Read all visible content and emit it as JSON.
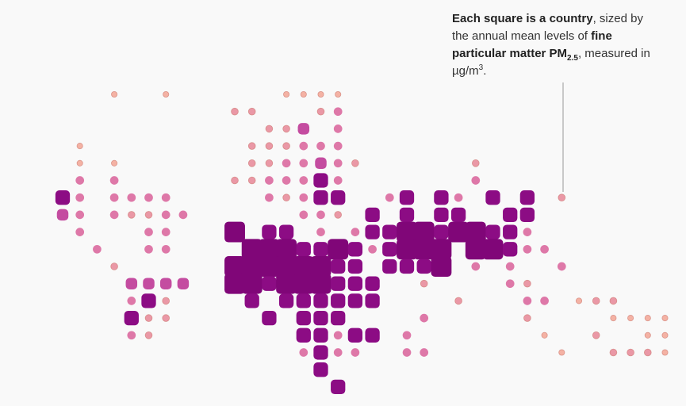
{
  "chart_data": {
    "type": "tilemap",
    "annotation": [
      "Each square is a country",
      ", sized by the annual mean levels of ",
      "fine particular matter PM",
      "2.5",
      ", measured in µg/m",
      "3",
      "."
    ],
    "rows": [
      [
        null,
        null,
        null,
        6,
        null,
        null,
        6,
        null,
        null,
        null,
        null,
        null,
        null,
        6,
        6,
        6,
        6,
        null,
        null,
        null,
        null,
        null,
        null,
        null,
        null,
        null,
        null,
        null,
        null,
        null,
        null,
        null,
        null,
        null,
        null,
        null
      ],
      [
        null,
        null,
        null,
        null,
        null,
        null,
        null,
        null,
        null,
        null,
        10,
        10,
        null,
        null,
        null,
        10,
        15,
        null,
        null,
        null,
        null,
        null,
        null,
        null,
        null,
        null,
        null,
        null,
        null,
        null,
        null,
        null,
        null,
        null,
        null,
        null
      ],
      [
        null,
        null,
        null,
        null,
        null,
        null,
        null,
        null,
        null,
        null,
        null,
        null,
        10,
        10,
        25,
        null,
        15,
        null,
        null,
        null,
        null,
        null,
        null,
        null,
        null,
        null,
        null,
        null,
        null,
        null,
        null,
        null,
        null,
        null,
        null,
        null
      ],
      [
        null,
        6,
        null,
        null,
        null,
        null,
        null,
        null,
        null,
        null,
        null,
        10,
        10,
        10,
        15,
        15,
        15,
        null,
        null,
        null,
        null,
        null,
        null,
        null,
        null,
        null,
        null,
        null,
        null,
        null,
        null,
        null,
        null,
        null,
        null,
        null
      ],
      [
        null,
        6,
        null,
        6,
        null,
        null,
        null,
        null,
        null,
        null,
        null,
        10,
        10,
        15,
        15,
        25,
        15,
        10,
        null,
        null,
        null,
        null,
        null,
        null,
        10,
        null,
        null,
        null,
        null,
        null,
        null,
        null,
        null,
        null,
        null,
        null
      ],
      [
        null,
        15,
        null,
        15,
        null,
        null,
        null,
        null,
        null,
        null,
        10,
        10,
        15,
        15,
        15,
        35,
        15,
        null,
        null,
        null,
        null,
        null,
        null,
        null,
        15,
        null,
        null,
        null,
        null,
        null,
        null,
        null,
        null,
        null,
        null,
        null
      ],
      [
        35,
        15,
        null,
        15,
        15,
        15,
        15,
        null,
        null,
        null,
        null,
        null,
        15,
        10,
        15,
        35,
        35,
        null,
        null,
        15,
        35,
        null,
        35,
        15,
        null,
        35,
        null,
        35,
        null,
        10,
        null,
        null,
        null,
        null,
        null,
        null
      ],
      [
        25,
        15,
        null,
        15,
        10,
        10,
        15,
        15,
        null,
        null,
        null,
        null,
        null,
        null,
        15,
        15,
        10,
        null,
        35,
        null,
        35,
        null,
        35,
        35,
        null,
        null,
        35,
        35,
        null,
        null,
        null,
        null,
        null,
        null,
        null,
        null
      ],
      [
        null,
        15,
        null,
        null,
        null,
        15,
        15,
        null,
        null,
        null,
        55,
        null,
        35,
        35,
        null,
        15,
        null,
        15,
        35,
        35,
        55,
        55,
        35,
        55,
        55,
        35,
        35,
        15,
        null,
        null,
        null,
        null,
        null,
        null,
        null,
        null
      ],
      [
        null,
        null,
        15,
        null,
        null,
        15,
        15,
        null,
        null,
        null,
        null,
        55,
        55,
        55,
        35,
        35,
        55,
        35,
        15,
        35,
        55,
        55,
        55,
        null,
        55,
        55,
        35,
        15,
        15,
        null,
        null,
        null,
        null,
        null,
        null,
        null
      ],
      [
        null,
        null,
        null,
        10,
        null,
        null,
        null,
        null,
        null,
        null,
        55,
        55,
        55,
        55,
        55,
        55,
        35,
        35,
        null,
        35,
        35,
        35,
        55,
        null,
        15,
        null,
        15,
        null,
        null,
        15,
        null,
        null,
        null,
        null,
        null,
        null
      ],
      [
        null,
        null,
        null,
        null,
        25,
        25,
        25,
        25,
        null,
        null,
        55,
        55,
        35,
        55,
        55,
        55,
        35,
        35,
        35,
        null,
        null,
        10,
        null,
        null,
        null,
        null,
        15,
        10,
        null,
        null,
        null,
        null,
        null,
        null,
        null,
        null
      ],
      [
        null,
        null,
        null,
        null,
        15,
        35,
        10,
        null,
        null,
        null,
        null,
        35,
        null,
        35,
        35,
        35,
        35,
        35,
        35,
        null,
        null,
        null,
        null,
        10,
        null,
        null,
        null,
        15,
        15,
        null,
        6,
        10,
        10,
        null,
        null,
        null
      ],
      [
        null,
        null,
        null,
        null,
        35,
        10,
        10,
        null,
        null,
        null,
        null,
        null,
        35,
        null,
        35,
        35,
        35,
        null,
        null,
        null,
        null,
        15,
        null,
        null,
        null,
        null,
        null,
        10,
        null,
        null,
        null,
        null,
        6,
        6,
        6,
        6
      ],
      [
        null,
        null,
        null,
        null,
        15,
        10,
        null,
        null,
        null,
        null,
        null,
        null,
        null,
        null,
        35,
        35,
        15,
        35,
        35,
        null,
        15,
        null,
        null,
        null,
        null,
        null,
        null,
        null,
        6,
        null,
        null,
        10,
        null,
        null,
        6,
        6
      ],
      [
        null,
        null,
        null,
        null,
        null,
        null,
        null,
        null,
        null,
        null,
        null,
        null,
        null,
        null,
        15,
        35,
        15,
        15,
        null,
        null,
        15,
        15,
        null,
        null,
        null,
        null,
        null,
        null,
        null,
        6,
        null,
        null,
        10,
        10,
        10,
        6
      ],
      [
        null,
        null,
        null,
        null,
        null,
        null,
        null,
        null,
        null,
        null,
        null,
        null,
        null,
        null,
        null,
        35,
        null,
        null,
        null,
        null,
        null,
        null,
        null,
        null,
        null,
        null,
        null,
        null,
        null,
        null,
        null,
        null,
        null,
        null,
        null,
        null
      ],
      [
        null,
        null,
        null,
        null,
        null,
        null,
        null,
        null,
        null,
        null,
        null,
        null,
        null,
        null,
        null,
        null,
        35,
        null,
        null,
        null,
        null,
        null,
        null,
        null,
        null,
        null,
        null,
        null,
        null,
        null,
        null,
        null,
        null,
        null,
        null,
        null
      ]
    ]
  }
}
